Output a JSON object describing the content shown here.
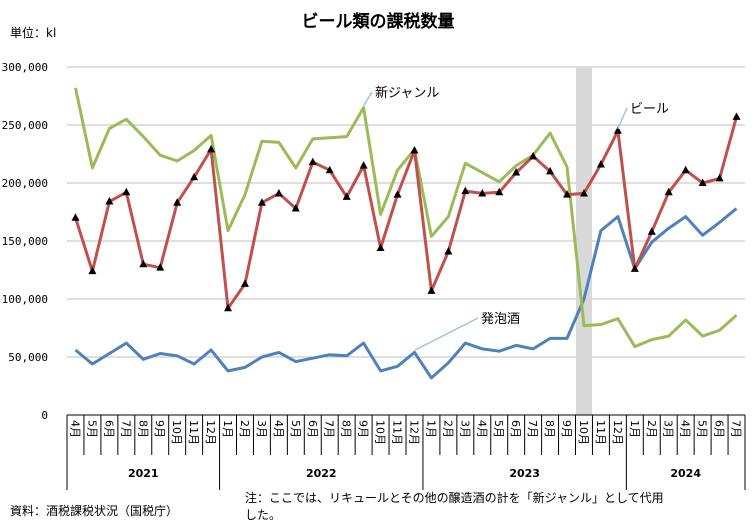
{
  "chart_data": {
    "type": "line",
    "title": "ビール類の課税数量",
    "unit_label": "単位：kl",
    "ylim": [
      0,
      300000
    ],
    "y_ticks": [
      "0",
      "50,000",
      "100,000",
      "150,000",
      "200,000",
      "250,000",
      "300,000"
    ],
    "y_tick_values": [
      0,
      50000,
      100000,
      150000,
      200000,
      250000,
      300000
    ],
    "x_labels": [
      "4月",
      "5月",
      "6月",
      "7月",
      "8月",
      "9月",
      "10月",
      "11月",
      "12月",
      "1月",
      "2月",
      "3月",
      "4月",
      "5月",
      "6月",
      "7月",
      "8月",
      "9月",
      "10月",
      "11月",
      "12月",
      "1月",
      "2月",
      "3月",
      "4月",
      "5月",
      "6月",
      "7月",
      "8月",
      "9月",
      "10月",
      "11月",
      "12月",
      "1月",
      "2月",
      "3月",
      "4月",
      "5月",
      "6月",
      "7月"
    ],
    "years": [
      {
        "label": "2021",
        "start": 0,
        "end": 8
      },
      {
        "label": "2022",
        "start": 9,
        "end": 20
      },
      {
        "label": "2023",
        "start": 21,
        "end": 32
      },
      {
        "label": "2024",
        "start": 33,
        "end": 39
      }
    ],
    "grid": true,
    "highlight_index": 30,
    "series": [
      {
        "name": "ビール",
        "color": "#c0504d",
        "marker": "triangle",
        "values": [
          170000,
          124000,
          184000,
          192000,
          130000,
          127000,
          183000,
          205000,
          229000,
          92000,
          113000,
          183000,
          191000,
          178000,
          218000,
          211000,
          188000,
          215000,
          144000,
          190000,
          228000,
          107000,
          141000,
          193000,
          191000,
          192000,
          209000,
          223000,
          210000,
          190000,
          191000,
          216000,
          245000,
          126000,
          158000,
          192000,
          211000,
          200000,
          204000,
          257000
        ]
      },
      {
        "name": "新ジャンル",
        "color": "#9bbb59",
        "marker": "none",
        "values": [
          282000,
          213000,
          247000,
          255000,
          240000,
          224000,
          219000,
          228000,
          241000,
          159000,
          190000,
          236000,
          235000,
          213000,
          238000,
          239000,
          240000,
          265000,
          173000,
          211000,
          229000,
          154000,
          171000,
          217000,
          209000,
          201000,
          215000,
          224000,
          243000,
          214000,
          77000,
          78000,
          83000,
          59000,
          65000,
          68000,
          82000,
          68000,
          73000,
          86000
        ]
      },
      {
        "name": "発泡酒",
        "color": "#4f81bd",
        "marker": "none",
        "values": [
          56000,
          44000,
          53000,
          62000,
          48000,
          53000,
          51000,
          44000,
          56000,
          38000,
          41000,
          50000,
          54000,
          46000,
          49000,
          52000,
          51000,
          62000,
          38000,
          42000,
          54000,
          32000,
          45000,
          62000,
          57000,
          55000,
          60000,
          57000,
          66000,
          66000,
          100000,
          159000,
          171000,
          126000,
          149000,
          161000,
          171000,
          155000,
          166000,
          178000
        ]
      }
    ],
    "annotations": [
      {
        "text": "新ジャンル",
        "series": "新ジャンル"
      },
      {
        "text": "ビール",
        "series": "ビール"
      },
      {
        "text": "発泡酒",
        "series": "発泡酒"
      }
    ]
  },
  "footer": {
    "source": "資料：酒税課税状況（国税庁）",
    "note_line1": "注：ここでは、リキュールとその他の醸造酒の計を「新ジャンル」として代用",
    "note_line2": "した。"
  }
}
